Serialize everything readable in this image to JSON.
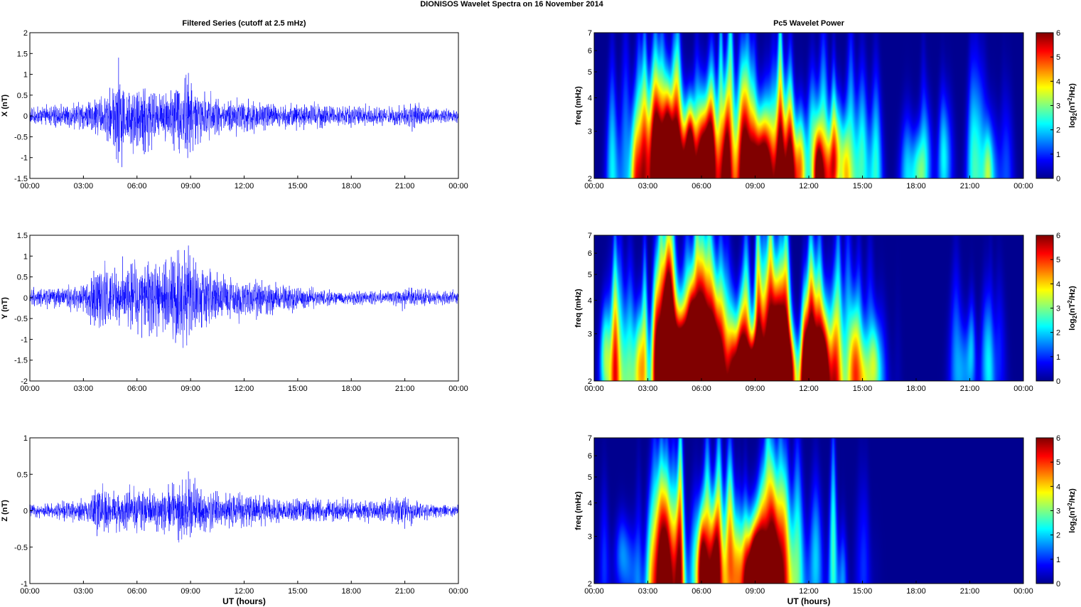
{
  "figure_title": "DIONISOS Wavelet Spectra on 16 November  2014",
  "colors": {
    "trace": "#0000ff",
    "jet": [
      "#00008f",
      "#0000ff",
      "#0080ff",
      "#00ffff",
      "#80ff80",
      "#ffff00",
      "#ff8000",
      "#ff0000",
      "#800000"
    ]
  },
  "chart_data": [
    {
      "type": "line",
      "title": "Filtered Series (cutoff at 2.5 mHz)",
      "xlabel": "",
      "ylabel": "X (nT)",
      "xlim": [
        0,
        24
      ],
      "ylim": [
        -1.5,
        2
      ],
      "xtick_labels": [
        "00:00",
        "03:00",
        "06:00",
        "09:00",
        "12:00",
        "15:00",
        "18:00",
        "21:00",
        "00:00"
      ],
      "ytick_labels": [
        "-1.5",
        "-1",
        "-0.5",
        "0",
        "0.5",
        "1",
        "1.5",
        "2"
      ],
      "envelope_hours": [
        0,
        1,
        2,
        3,
        3.5,
        4,
        4.5,
        5,
        5.5,
        6,
        6.5,
        7,
        7.5,
        8,
        8.5,
        9,
        9.5,
        10,
        11,
        12,
        13,
        14,
        15,
        16,
        17,
        18,
        19,
        20,
        20.5,
        21,
        21.5,
        22,
        23,
        24
      ],
      "envelope_amplitude": [
        0.25,
        0.3,
        0.35,
        0.4,
        0.5,
        0.6,
        0.9,
        1.5,
        0.8,
        1.0,
        1.2,
        0.8,
        0.7,
        0.9,
        1.2,
        1.4,
        0.9,
        0.7,
        0.5,
        0.5,
        0.45,
        0.4,
        0.4,
        0.35,
        0.35,
        0.3,
        0.3,
        0.25,
        0.3,
        0.35,
        0.5,
        0.3,
        0.2,
        0.2
      ]
    },
    {
      "type": "line",
      "title": "",
      "xlabel": "",
      "ylabel": "Y (nT)",
      "xlim": [
        0,
        24
      ],
      "ylim": [
        -2,
        1.5
      ],
      "xtick_labels": [
        "00:00",
        "03:00",
        "06:00",
        "09:00",
        "12:00",
        "15:00",
        "18:00",
        "21:00",
        "00:00"
      ],
      "ytick_labels": [
        "-2",
        "-1.5",
        "-1",
        "-0.5",
        "0",
        "0.5",
        "1",
        "1.5"
      ],
      "envelope_hours": [
        0,
        1,
        2,
        3,
        3.5,
        4,
        4.5,
        5,
        5.5,
        6,
        6.5,
        7,
        7.5,
        8,
        8.5,
        9,
        9.5,
        10,
        11,
        12,
        13,
        14,
        15,
        16,
        17,
        18,
        19,
        20,
        20.5,
        21,
        21.5,
        22,
        23,
        24
      ],
      "envelope_amplitude": [
        0.25,
        0.3,
        0.35,
        0.45,
        0.7,
        1.0,
        0.8,
        0.9,
        1.2,
        1.0,
        1.1,
        1.2,
        1.0,
        1.3,
        1.4,
        1.5,
        1.0,
        0.8,
        0.7,
        0.6,
        0.5,
        0.45,
        0.35,
        0.3,
        0.25,
        0.2,
        0.2,
        0.2,
        0.25,
        0.35,
        0.3,
        0.25,
        0.2,
        0.2
      ]
    },
    {
      "type": "line",
      "title": "",
      "xlabel": "UT (hours)",
      "ylabel": "Z (nT)",
      "xlim": [
        0,
        24
      ],
      "ylim": [
        -1,
        1
      ],
      "xtick_labels": [
        "00:00",
        "03:00",
        "06:00",
        "09:00",
        "12:00",
        "15:00",
        "18:00",
        "21:00",
        "00:00"
      ],
      "ytick_labels": [
        "-1",
        "-0.5",
        "0",
        "0.5",
        "1"
      ],
      "envelope_hours": [
        0,
        1,
        2,
        3,
        3.5,
        4,
        4.5,
        5,
        5.5,
        6,
        6.5,
        7,
        7.5,
        8,
        8.5,
        9,
        9.5,
        10,
        11,
        12,
        13,
        14,
        15,
        16,
        17,
        18,
        19,
        20,
        20.5,
        21,
        21.5,
        22,
        23,
        24
      ],
      "envelope_amplitude": [
        0.1,
        0.12,
        0.15,
        0.2,
        0.3,
        0.45,
        0.35,
        0.4,
        0.35,
        0.4,
        0.35,
        0.4,
        0.35,
        0.45,
        0.5,
        0.6,
        0.4,
        0.35,
        0.3,
        0.3,
        0.25,
        0.2,
        0.2,
        0.2,
        0.2,
        0.18,
        0.18,
        0.2,
        0.2,
        0.25,
        0.2,
        0.15,
        0.12,
        0.1
      ]
    },
    {
      "type": "heatmap",
      "title": "Pc5 Wavelet Power",
      "xlabel": "",
      "ylabel": "freq (mHz)",
      "xlim": [
        0,
        24
      ],
      "ylim": [
        2,
        7
      ],
      "y_scale": "log",
      "xtick_labels": [
        "00:00",
        "03:00",
        "06:00",
        "09:00",
        "12:00",
        "15:00",
        "18:00",
        "21:00",
        "00:00"
      ],
      "ytick_values": [
        2,
        3,
        4,
        5,
        6,
        7
      ],
      "ytick_labels": [
        "2",
        "3",
        "4",
        "5",
        "6",
        "7"
      ],
      "colorbar_label": "log2(nT2/Hz)",
      "clim": [
        0,
        6
      ],
      "colorbar_ticks": [
        "0",
        "1",
        "2",
        "3",
        "4",
        "5",
        "6"
      ],
      "activity_hours": [
        0,
        1,
        2,
        3,
        3.5,
        4,
        5,
        6,
        7,
        8,
        9,
        10,
        11,
        12,
        13,
        14,
        15,
        16,
        17,
        18,
        19,
        20,
        21,
        22,
        23,
        24
      ],
      "activity_level": [
        0.35,
        0.4,
        0.45,
        0.55,
        0.8,
        0.95,
        1.0,
        0.95,
        0.85,
        0.9,
        1.0,
        0.85,
        0.7,
        0.7,
        0.55,
        0.5,
        0.45,
        0.4,
        0.35,
        0.3,
        0.25,
        0.3,
        0.3,
        0.25,
        0.15,
        0.1
      ]
    },
    {
      "type": "heatmap",
      "title": "",
      "xlabel": "",
      "ylabel": "freq (mHz)",
      "xlim": [
        0,
        24
      ],
      "ylim": [
        2,
        7
      ],
      "y_scale": "log",
      "xtick_labels": [
        "00:00",
        "03:00",
        "06:00",
        "09:00",
        "12:00",
        "15:00",
        "18:00",
        "21:00",
        "00:00"
      ],
      "ytick_values": [
        2,
        3,
        4,
        5,
        6,
        7
      ],
      "ytick_labels": [
        "2",
        "3",
        "4",
        "5",
        "6",
        "7"
      ],
      "colorbar_label": "log2(nT2/Hz)",
      "clim": [
        0,
        6
      ],
      "colorbar_ticks": [
        "0",
        "1",
        "2",
        "3",
        "4",
        "5",
        "6"
      ],
      "activity_hours": [
        0,
        1,
        2,
        3,
        3.5,
        4,
        5,
        6,
        7,
        8,
        9,
        10,
        11,
        12,
        13,
        14,
        15,
        16,
        17,
        18,
        19,
        20,
        21,
        22,
        23,
        24
      ],
      "activity_level": [
        0.5,
        0.5,
        0.45,
        0.55,
        0.8,
        0.95,
        1.0,
        1.0,
        0.95,
        0.95,
        1.0,
        0.95,
        0.85,
        0.8,
        0.65,
        0.55,
        0.45,
        0.35,
        0.05,
        0.0,
        0.0,
        0.2,
        0.3,
        0.25,
        0.1,
        0.0
      ]
    },
    {
      "type": "heatmap",
      "title": "",
      "xlabel": "UT (hours)",
      "ylabel": "freq (mHz)",
      "xlim": [
        0,
        24
      ],
      "ylim": [
        2,
        7
      ],
      "y_scale": "log",
      "xtick_labels": [
        "00:00",
        "03:00",
        "06:00",
        "09:00",
        "12:00",
        "15:00",
        "18:00",
        "21:00",
        "00:00"
      ],
      "ytick_values": [
        2,
        3,
        4,
        5,
        6,
        7
      ],
      "ytick_labels": [
        "2",
        "3",
        "4",
        "5",
        "6",
        "7"
      ],
      "colorbar_label": "log2(nT2/Hz)",
      "clim": [
        0,
        6
      ],
      "colorbar_ticks": [
        "0",
        "1",
        "2",
        "3",
        "4",
        "5",
        "6"
      ],
      "activity_hours": [
        0,
        1,
        2,
        3,
        3.5,
        4,
        5,
        6,
        7,
        8,
        9,
        10,
        11,
        12,
        13,
        14,
        15,
        16,
        17,
        18,
        19,
        20,
        21,
        22,
        23,
        24
      ],
      "activity_level": [
        0.15,
        0.2,
        0.25,
        0.3,
        0.6,
        0.85,
        0.65,
        0.7,
        0.7,
        0.7,
        0.85,
        0.65,
        0.6,
        0.55,
        0.45,
        0.35,
        0.1,
        0.0,
        0.0,
        0.0,
        0.0,
        0.0,
        0.0,
        0.0,
        0.0,
        0.0
      ]
    }
  ]
}
